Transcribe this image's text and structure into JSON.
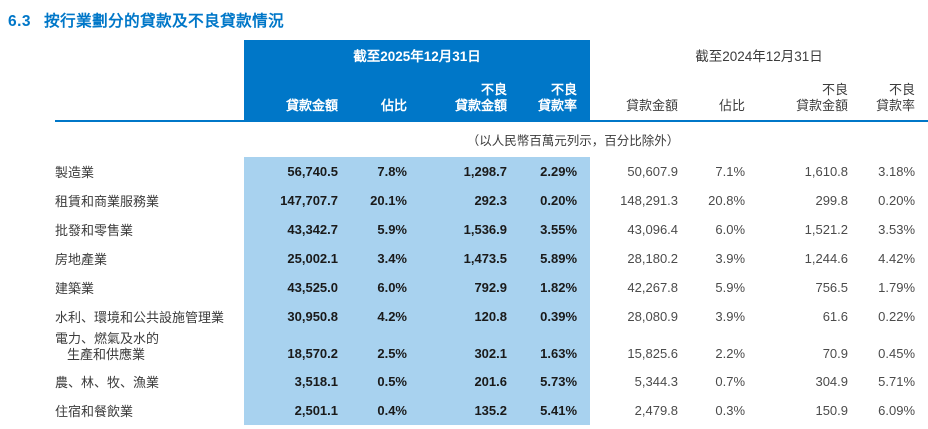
{
  "title": {
    "number": "6.3",
    "text": "按行業劃分的貸款及不良貸款情況"
  },
  "colors": {
    "brand_blue": "#0077C8",
    "band_blue": "#A8D2EF",
    "title_blue": "#0077C8",
    "text_dark": "#1A1A1A",
    "text_gray": "#3C3C3C"
  },
  "table": {
    "group_2025": "截至2025年12月31日",
    "group_2024": "截至2024年12月31日",
    "columns": [
      "貸款金額",
      "佔比",
      "不良\n貸款金額",
      "不良\n貸款率"
    ],
    "unit_note": "（以人民幣百萬元列示，百分比除外）",
    "rows": [
      {
        "label": "製造業",
        "y2025": [
          "56,740.5",
          "7.8%",
          "1,298.7",
          "2.29%"
        ],
        "y2024": [
          "50,607.9",
          "7.1%",
          "1,610.8",
          "3.18%"
        ]
      },
      {
        "label": "租賃和商業服務業",
        "y2025": [
          "147,707.7",
          "20.1%",
          "292.3",
          "0.20%"
        ],
        "y2024": [
          "148,291.3",
          "20.8%",
          "299.8",
          "0.20%"
        ]
      },
      {
        "label": "批發和零售業",
        "y2025": [
          "43,342.7",
          "5.9%",
          "1,536.9",
          "3.55%"
        ],
        "y2024": [
          "43,096.4",
          "6.0%",
          "1,521.2",
          "3.53%"
        ]
      },
      {
        "label": "房地產業",
        "y2025": [
          "25,002.1",
          "3.4%",
          "1,473.5",
          "5.89%"
        ],
        "y2024": [
          "28,180.2",
          "3.9%",
          "1,244.6",
          "4.42%"
        ]
      },
      {
        "label": "建築業",
        "y2025": [
          "43,525.0",
          "6.0%",
          "792.9",
          "1.82%"
        ],
        "y2024": [
          "42,267.8",
          "5.9%",
          "756.5",
          "1.79%"
        ]
      },
      {
        "label": "水利、環境和公共設施管理業",
        "y2025": [
          "30,950.8",
          "4.2%",
          "120.8",
          "0.39%"
        ],
        "y2024": [
          "28,080.9",
          "3.9%",
          "61.6",
          "0.22%"
        ]
      },
      {
        "label_lines": [
          "電力、燃氣及水的",
          "生產和供應業"
        ],
        "y2025": [
          "18,570.2",
          "2.5%",
          "302.1",
          "1.63%"
        ],
        "y2024": [
          "15,825.6",
          "2.2%",
          "70.9",
          "0.45%"
        ]
      },
      {
        "label": "農、林、牧、漁業",
        "y2025": [
          "3,518.1",
          "0.5%",
          "201.6",
          "5.73%"
        ],
        "y2024": [
          "5,344.3",
          "0.7%",
          "304.9",
          "5.71%"
        ]
      },
      {
        "label": "住宿和餐飲業",
        "y2025": [
          "2,501.1",
          "0.4%",
          "135.2",
          "5.41%"
        ],
        "y2024": [
          "2,479.8",
          "0.3%",
          "150.9",
          "6.09%"
        ]
      }
    ]
  }
}
